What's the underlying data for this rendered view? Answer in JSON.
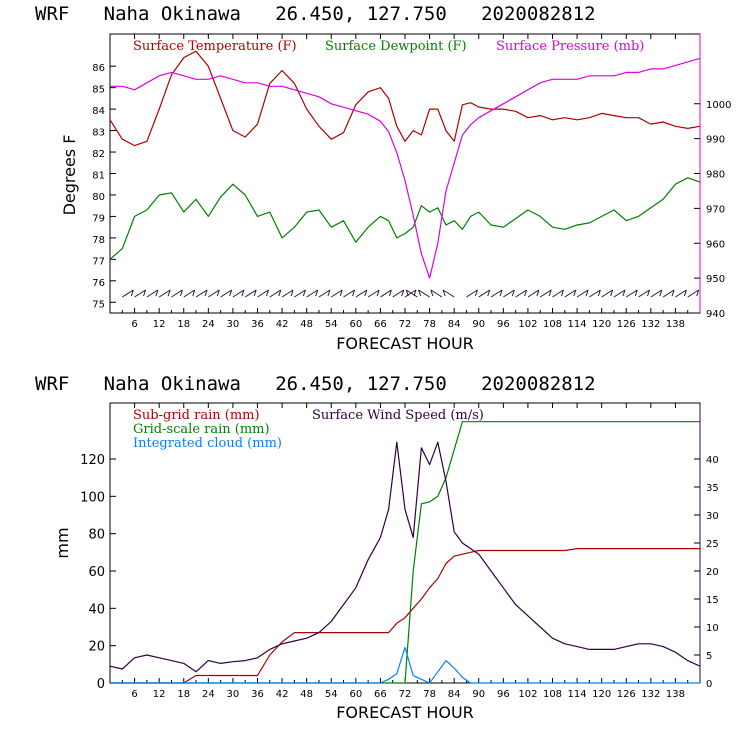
{
  "chart_data": [
    {
      "type": "line",
      "title": "WRF   Naha Okinawa   26.450, 127.750   2020082812",
      "xlabel": "FORECAST HOUR",
      "ylabel": "Degrees F",
      "ylim": [
        74.5,
        87.5
      ],
      "y2lim": [
        940,
        1020
      ],
      "xlim": [
        0,
        144
      ],
      "xticks": [
        "6",
        "12",
        "18",
        "24",
        "30",
        "36",
        "42",
        "48",
        "54",
        "60",
        "66",
        "72",
        "78",
        "84",
        "90",
        "96",
        "102",
        "108",
        "114",
        "120",
        "126",
        "132",
        "138"
      ],
      "yticks_left": [
        "75",
        "76",
        "77",
        "78",
        "79",
        "80",
        "81",
        "82",
        "83",
        "84",
        "85",
        "86"
      ],
      "yticks_right": [
        "940",
        "950",
        "960",
        "970",
        "980",
        "990",
        "1000"
      ],
      "legend": [
        "Surface Temperature (F)",
        "Surface Dewpoint (F)",
        "Surface Pressure (mb)"
      ],
      "colors": {
        "temperature": "#b00000",
        "dewpoint": "#008000",
        "pressure": "#e000e0",
        "wind_barbs": "#301040"
      },
      "x": [
        0,
        3,
        6,
        9,
        12,
        15,
        18,
        21,
        24,
        27,
        30,
        33,
        36,
        39,
        42,
        45,
        48,
        51,
        54,
        57,
        60,
        63,
        66,
        68,
        70,
        72,
        74,
        76,
        78,
        80,
        82,
        84,
        86,
        88,
        90,
        93,
        96,
        99,
        102,
        105,
        108,
        111,
        114,
        117,
        120,
        123,
        126,
        129,
        132,
        135,
        138,
        141,
        144
      ],
      "series": [
        {
          "name": "Surface Temperature (F)",
          "values": [
            83.5,
            82.6,
            82.3,
            82.5,
            84.0,
            85.6,
            86.4,
            86.7,
            86.0,
            84.5,
            83.0,
            82.7,
            83.3,
            85.2,
            85.8,
            85.2,
            84.0,
            83.2,
            82.6,
            82.9,
            84.2,
            84.8,
            85.0,
            84.5,
            83.2,
            82.5,
            83.0,
            82.8,
            84.0,
            84.0,
            83.0,
            82.5,
            84.2,
            84.3,
            84.1,
            84.0,
            84.0,
            83.9,
            83.6,
            83.7,
            83.5,
            83.6,
            83.5,
            83.6,
            83.8,
            83.7,
            83.6,
            83.6,
            83.3,
            83.4,
            83.2,
            83.1,
            83.2
          ]
        },
        {
          "name": "Surface Dewpoint (F)",
          "values": [
            77.0,
            77.5,
            79.0,
            79.3,
            80.0,
            80.1,
            79.2,
            79.8,
            79.0,
            79.9,
            80.5,
            80.0,
            79.0,
            79.2,
            78.0,
            78.5,
            79.2,
            79.3,
            78.5,
            78.8,
            77.8,
            78.5,
            79.0,
            78.8,
            78.0,
            78.2,
            78.5,
            79.5,
            79.2,
            79.4,
            78.6,
            78.8,
            78.4,
            79.0,
            79.2,
            78.6,
            78.5,
            78.9,
            79.3,
            79.0,
            78.5,
            78.4,
            78.6,
            78.7,
            79.0,
            79.3,
            78.8,
            79.0,
            79.4,
            79.8,
            80.5,
            80.8,
            80.6
          ]
        },
        {
          "name": "Surface Pressure (mb)",
          "values": [
            1005,
            1005,
            1004,
            1006,
            1008,
            1009,
            1008,
            1007,
            1007,
            1008,
            1007,
            1006,
            1006,
            1005,
            1005,
            1004,
            1003,
            1002,
            1000,
            999,
            998,
            997,
            995,
            992,
            986,
            978,
            968,
            957,
            950,
            960,
            975,
            983,
            991,
            994,
            996,
            998,
            1000,
            1002,
            1004,
            1006,
            1007,
            1007,
            1007,
            1008,
            1008,
            1008,
            1009,
            1009,
            1010,
            1010,
            1011,
            1012,
            1013
          ]
        }
      ]
    },
    {
      "type": "line",
      "title": "WRF   Naha Okinawa   26.450, 127.750   2020082812",
      "xlabel": "FORECAST HOUR",
      "ylabel": "mm",
      "ylim": [
        0,
        150
      ],
      "y2lim": [
        0,
        50
      ],
      "xlim": [
        0,
        144
      ],
      "xticks": [
        "6",
        "12",
        "18",
        "24",
        "30",
        "36",
        "42",
        "48",
        "54",
        "60",
        "66",
        "72",
        "78",
        "84",
        "90",
        "96",
        "102",
        "108",
        "114",
        "120",
        "126",
        "132",
        "138"
      ],
      "yticks_left": [
        "0",
        "20",
        "40",
        "60",
        "80",
        "100",
        "120"
      ],
      "yticks_right": [
        "0",
        "5",
        "10",
        "15",
        "20",
        "25",
        "30",
        "35",
        "40"
      ],
      "legend": [
        "Sub-grid rain (mm)",
        "Surface Wind Speed (m/s)",
        "Grid-scale rain (mm)",
        "Integrated cloud (mm)"
      ],
      "colors": {
        "subgrid": "#b00000",
        "wind": "#300040",
        "gridscale": "#008000",
        "cloud": "#0080ff"
      },
      "x": [
        0,
        3,
        6,
        9,
        12,
        15,
        18,
        21,
        24,
        27,
        30,
        33,
        36,
        39,
        42,
        45,
        48,
        51,
        54,
        57,
        60,
        63,
        66,
        68,
        70,
        72,
        74,
        76,
        78,
        80,
        82,
        84,
        86,
        88,
        90,
        93,
        96,
        99,
        102,
        105,
        108,
        111,
        114,
        117,
        120,
        123,
        126,
        129,
        132,
        135,
        138,
        141,
        144
      ],
      "series": [
        {
          "name": "Sub-grid rain (mm)",
          "values": [
            0,
            0,
            0,
            0,
            0,
            0,
            0,
            4,
            4,
            4,
            4,
            4,
            4,
            15,
            22,
            27,
            27,
            27,
            27,
            27,
            27,
            27,
            27,
            27,
            32,
            35,
            40,
            45,
            51,
            56,
            64,
            68,
            69,
            70,
            71,
            71,
            71,
            71,
            71,
            71,
            71,
            71,
            72,
            72,
            72,
            72,
            72,
            72,
            72,
            72,
            72,
            72,
            72
          ]
        },
        {
          "name": "Grid-scale rain (mm)",
          "values": [
            0,
            0,
            0,
            0,
            0,
            0,
            0,
            0,
            0,
            0,
            0,
            0,
            0,
            0,
            0,
            0,
            0,
            0,
            0,
            0,
            0,
            0,
            0,
            0,
            0,
            0,
            60,
            96,
            97,
            100,
            110,
            125,
            140,
            140,
            140,
            140,
            140,
            140,
            140,
            140,
            140,
            140,
            140,
            140,
            140,
            140,
            140,
            140,
            140,
            140,
            140,
            140,
            140
          ]
        },
        {
          "name": "Surface Wind Speed (m/s)",
          "values": [
            3,
            2.5,
            4.5,
            5,
            4.5,
            4,
            3.5,
            2,
            4,
            3.5,
            3.8,
            4,
            4.5,
            6,
            7,
            7.5,
            8,
            9,
            11,
            14,
            17,
            22,
            26,
            31,
            43,
            31,
            26,
            42,
            39,
            43,
            36,
            27,
            25,
            24,
            23,
            20,
            17,
            14,
            12,
            10,
            8,
            7,
            6.5,
            6,
            6,
            6,
            6.5,
            7,
            7,
            6.5,
            5.5,
            4,
            3
          ]
        },
        {
          "name": "Integrated cloud (mm)",
          "values": [
            0,
            0,
            0,
            0,
            0,
            0,
            0,
            0,
            0,
            0,
            0,
            0,
            0,
            0,
            0,
            0,
            0,
            0,
            0,
            0,
            0,
            0,
            0,
            2,
            5,
            19,
            4,
            2,
            0,
            6,
            12,
            8,
            3,
            0,
            0,
            0,
            0,
            0,
            0,
            0,
            0,
            0,
            0,
            0,
            0,
            0,
            0,
            0,
            0,
            0,
            0,
            0,
            0
          ]
        }
      ]
    }
  ]
}
